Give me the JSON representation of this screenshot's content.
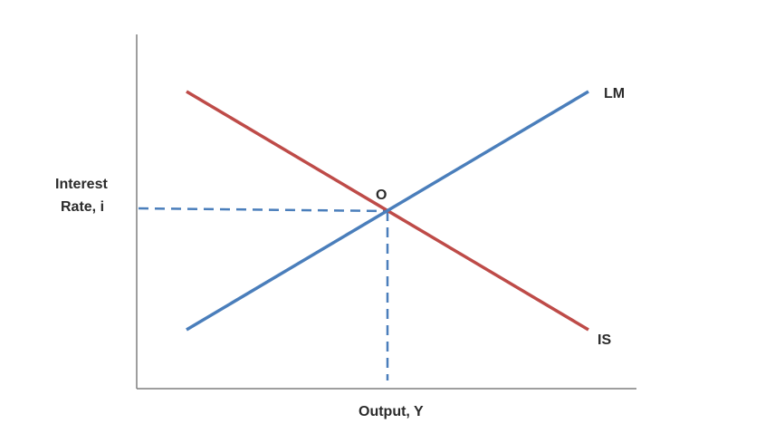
{
  "diagram": {
    "y_axis_label_line1": "Interest",
    "y_axis_label_line2": "Rate, i",
    "x_axis_label": "Output, Y",
    "equilibrium_label": "O",
    "lm_label": "LM",
    "is_label": "IS",
    "colors": {
      "lm_curve": "#4a7ebb",
      "is_curve": "#be4b48",
      "guide_lines": "#4a7ebb",
      "axes": "#7f7f7f",
      "text": "#2b2b2b"
    }
  }
}
